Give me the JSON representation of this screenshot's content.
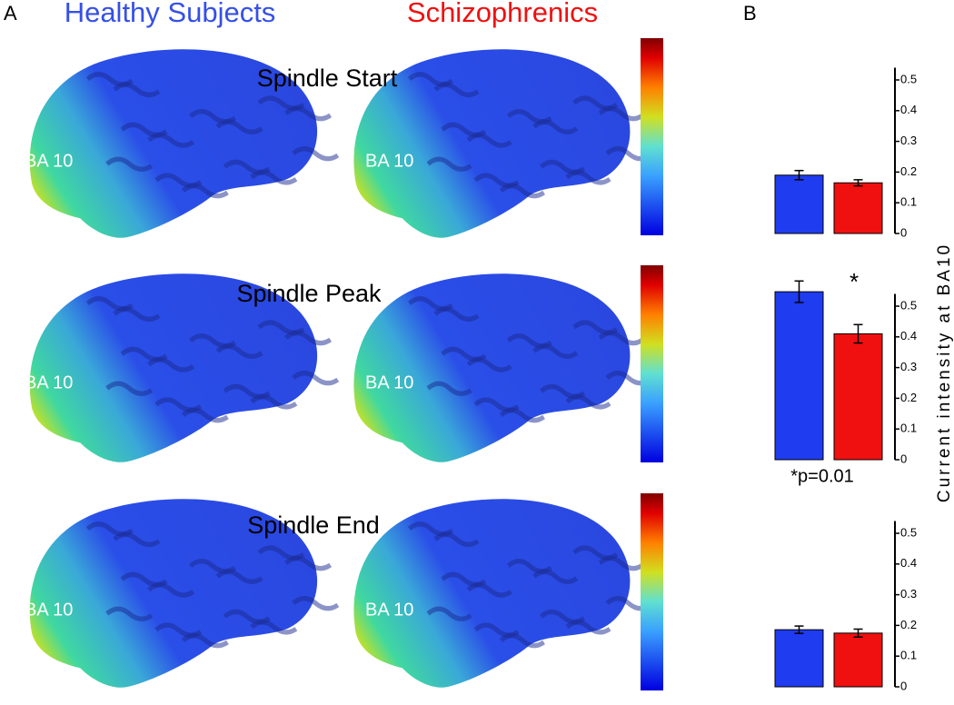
{
  "figure": {
    "panel_a": "A",
    "panel_b": "B",
    "columns": [
      "Healthy Subjects",
      "Schizophrenics"
    ],
    "rows": [
      "Spindle Start",
      "Spindle Peak",
      "Spindle End"
    ],
    "region_label": "BA 10",
    "y_label": "Current intensity at BA10"
  },
  "chart_data": [
    {
      "type": "bar",
      "values": [
        0.19,
        0.165
      ],
      "errors": [
        0.015,
        0.01
      ],
      "colors": [
        "#1f3cf0",
        "#f01010"
      ],
      "ylim": [
        0,
        0.54
      ],
      "yticks": [
        0,
        0.1,
        0.2,
        0.3,
        0.4,
        0.5
      ]
    },
    {
      "type": "bar",
      "values": [
        0.547,
        0.41
      ],
      "errors": [
        0.035,
        0.03
      ],
      "colors": [
        "#1f3cf0",
        "#f01010"
      ],
      "ylim": [
        0,
        0.54
      ],
      "yticks": [
        0,
        0.1,
        0.2,
        0.3,
        0.4,
        0.5
      ],
      "annotations": [
        "*",
        "*p=0.01"
      ]
    },
    {
      "type": "bar",
      "values": [
        0.186,
        0.175
      ],
      "errors": [
        0.012,
        0.013
      ],
      "colors": [
        "#1f3cf0",
        "#f01010"
      ],
      "ylim": [
        0,
        0.54
      ],
      "yticks": [
        0,
        0.1,
        0.2,
        0.3,
        0.4,
        0.5
      ]
    }
  ]
}
